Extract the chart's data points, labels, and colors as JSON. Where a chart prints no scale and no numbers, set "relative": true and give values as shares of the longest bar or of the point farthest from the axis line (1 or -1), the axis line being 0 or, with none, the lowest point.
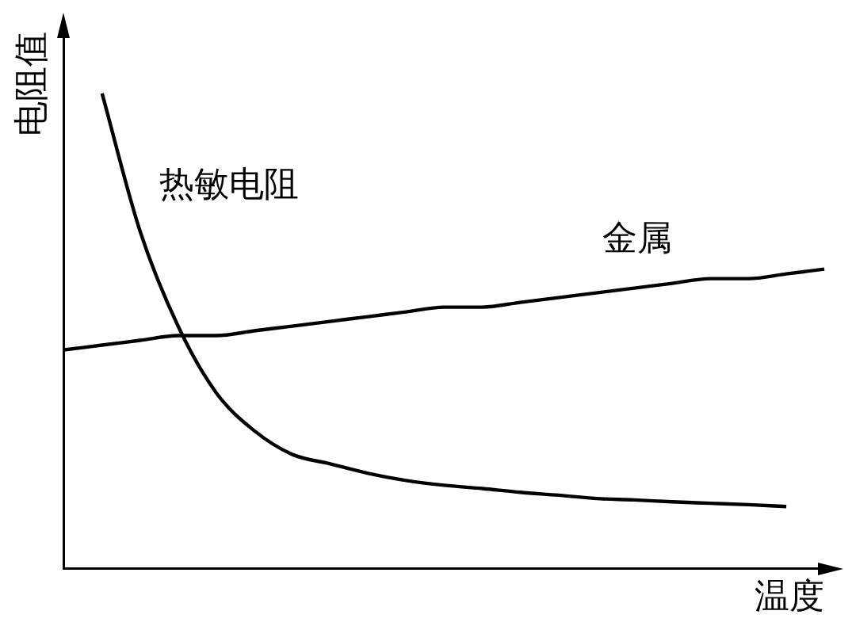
{
  "chart_data": {
    "type": "line",
    "relative": true,
    "xlabel": "温度",
    "ylabel": "电阻值",
    "legend": false,
    "marker": "none",
    "line_style": "solid",
    "categories": [
      null,
      null,
      null,
      null,
      null,
      null,
      null,
      null,
      null,
      null,
      null,
      null,
      null,
      null,
      null,
      null,
      null,
      null,
      null,
      null,
      null
    ],
    "series": [
      {
        "name": "热敏电阻",
        "color": "#000000",
        "values": [
          null,
          1,
          0.71,
          0.51,
          0.37,
          0.29,
          0.24,
          0.22,
          0.2,
          0.185,
          0.175,
          0.168,
          0.16,
          0.154,
          0.147,
          0.144,
          0.14,
          0.137,
          0.134,
          0.13,
          null
        ]
      },
      {
        "name": "金属",
        "color": "#000000",
        "values": [
          0.46,
          0.47,
          0.48,
          0.49,
          0.49,
          0.5,
          0.51,
          0.52,
          0.53,
          0.54,
          0.55,
          0.55,
          0.56,
          0.57,
          0.58,
          0.59,
          0.6,
          0.61,
          0.61,
          0.62,
          0.63
        ]
      }
    ]
  }
}
